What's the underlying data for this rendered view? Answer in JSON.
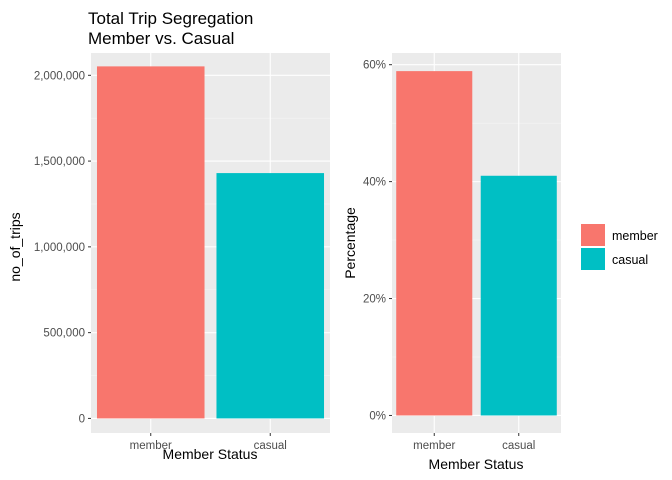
{
  "chart_data": [
    {
      "type": "bar",
      "title": "Total Trip Segregation\nMember vs. Casual",
      "title_lines": [
        "Total Trip Segregation",
        "Member vs. Casual"
      ],
      "xlabel": "Member Status",
      "ylabel": "no_of_trips",
      "categories": [
        "member",
        "casual"
      ],
      "values": [
        2052000,
        1430000
      ],
      "colors": [
        "#F8766D",
        "#00BFC4"
      ],
      "ylim": [
        -85000,
        2130000
      ],
      "yticks": [
        0,
        500000,
        1000000,
        1500000,
        2000000
      ],
      "ytick_labels": [
        "0",
        "500,000",
        "1,000,000",
        "1,500,000",
        "2,000,000"
      ],
      "grid": true,
      "panel_background": "#EBEBEB"
    },
    {
      "type": "bar",
      "xlabel": "Member Status",
      "ylabel": "Percentage",
      "categories": [
        "member",
        "casual"
      ],
      "values": [
        0.589,
        0.41
      ],
      "colors": [
        "#F8766D",
        "#00BFC4"
      ],
      "ylim": [
        -0.03,
        0.62
      ],
      "yticks": [
        0,
        0.2,
        0.4,
        0.6
      ],
      "ytick_labels": [
        "0%",
        "20%",
        "40%",
        "60%"
      ],
      "grid": true,
      "panel_background": "#EBEBEB"
    }
  ],
  "legend": {
    "placement": "right",
    "entries": [
      {
        "label": "member",
        "color": "#F8766D"
      },
      {
        "label": "casual",
        "color": "#00BFC4"
      }
    ]
  }
}
